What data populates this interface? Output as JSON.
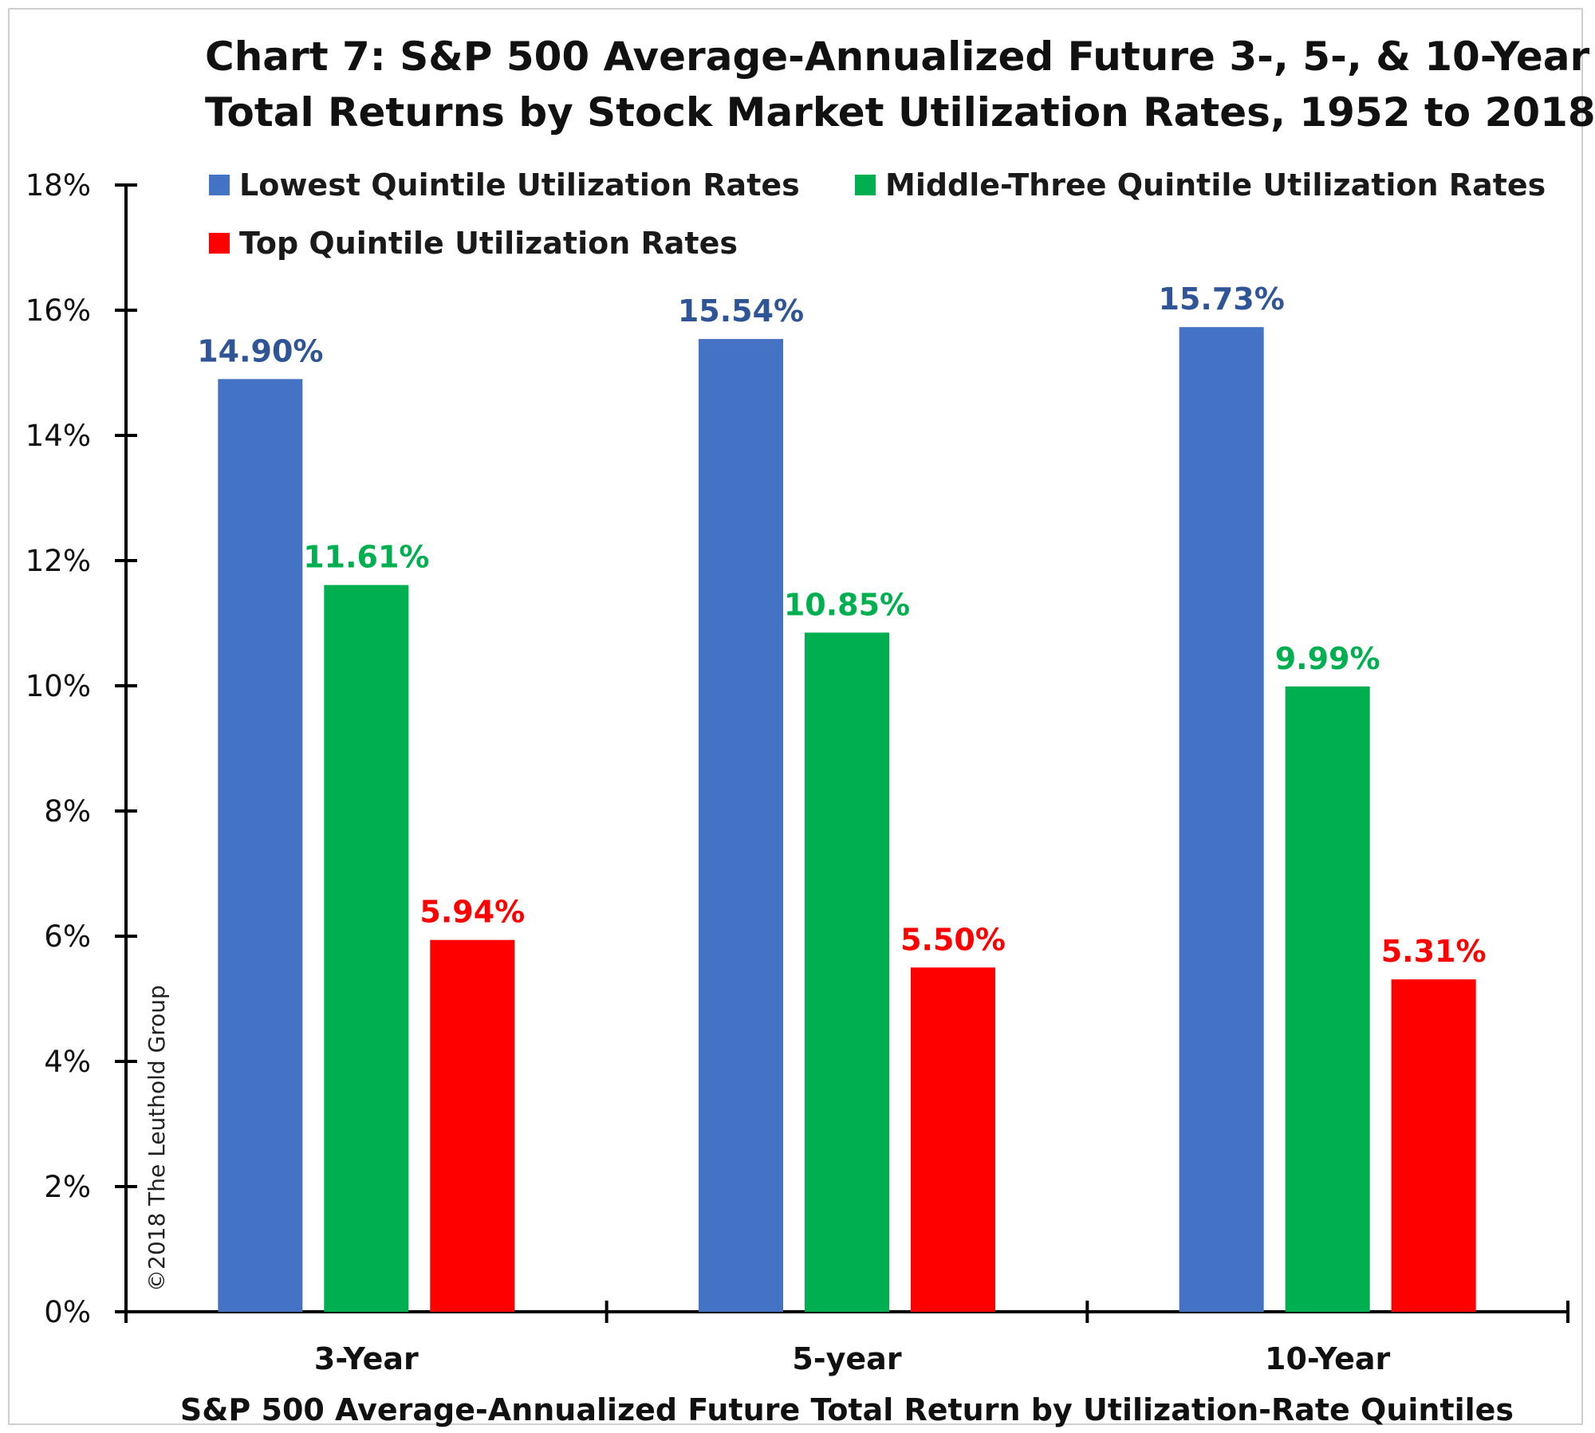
{
  "chart_data": {
    "type": "bar",
    "title": "Chart 7: S&P 500 Average-Annualized Future 3-, 5-, & 10-Year",
    "subtitle": "Total Returns by Stock Market Utilization Rates, 1952 to 2018",
    "xlabel": "S&P 500 Average-Annualized Future Total Return by Utilization-Rate Quintiles",
    "ylabel": "",
    "categories": [
      "3-Year",
      "5-year",
      "10-Year"
    ],
    "series": [
      {
        "name": "Lowest Quintile Utilization Rates",
        "color": "#4472C4",
        "values": [
          14.9,
          15.54,
          15.73
        ],
        "labels": [
          "14.90%",
          "15.54%",
          "15.73%"
        ],
        "label_color": "#2F5597"
      },
      {
        "name": "Middle-Three Quintile Utilization Rates",
        "color": "#00B050",
        "values": [
          11.61,
          10.85,
          9.99
        ],
        "labels": [
          "11.61%",
          "10.85%",
          "9.99%"
        ],
        "label_color": "#00B050"
      },
      {
        "name": "Top Quintile Utilization Rates",
        "color": "#FF0000",
        "values": [
          5.94,
          5.5,
          5.31
        ],
        "labels": [
          "5.94%",
          "5.50%",
          "5.31%"
        ],
        "label_color": "#FF0000"
      }
    ],
    "ylim": [
      0,
      18
    ],
    "yticks": [
      "0%",
      "2%",
      "4%",
      "6%",
      "8%",
      "10%",
      "12%",
      "14%",
      "16%",
      "18%"
    ],
    "grid": false,
    "legend_position": "top"
  },
  "watermark": "©2018 The Leuthold Group"
}
